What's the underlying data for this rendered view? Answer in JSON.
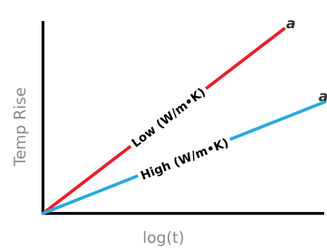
{
  "chart_data": {
    "type": "line",
    "xlabel": "log(t)",
    "ylabel": "Temp Rise",
    "xlim": [
      0,
      10
    ],
    "ylim": [
      0,
      10
    ],
    "grid": false,
    "series": [
      {
        "label": "Low (W/m•K)",
        "end_label": "a",
        "color": "#e8202a",
        "x": [
          0,
          8.55
        ],
        "y": [
          0,
          9.6
        ]
      },
      {
        "label": "High (W/m•K)",
        "end_label": "a",
        "color": "#29a9e0",
        "x": [
          0,
          10
        ],
        "y": [
          0,
          5.8
        ]
      }
    ]
  }
}
